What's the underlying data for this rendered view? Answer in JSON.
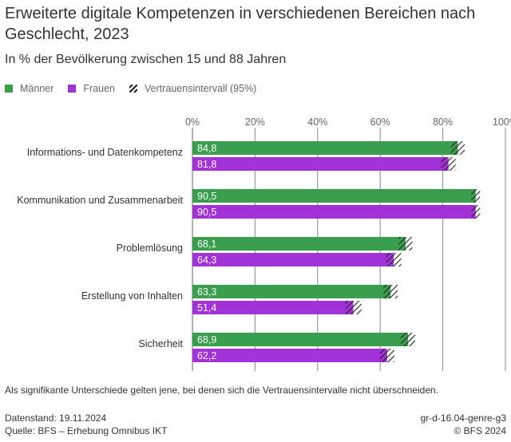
{
  "header": {
    "title": "Erweiterte digitale Kompetenzen in verschiedenen Bereichen nach Geschlecht, 2023",
    "subtitle": "In % der Bevölkerung zwischen 15 und 88 Jahren"
  },
  "legend": {
    "items": [
      {
        "label": "Männer",
        "color": "#3a9e4f",
        "icon": "green-square-icon"
      },
      {
        "label": "Frauen",
        "color": "#a331d8",
        "icon": "purple-square-icon"
      },
      {
        "label": "Vertrauensintervall (95%)",
        "icon": "hatch-icon"
      }
    ]
  },
  "chart_data": {
    "type": "bar",
    "orientation": "horizontal",
    "title": "Erweiterte digitale Kompetenzen in verschiedenen Bereichen nach Geschlecht, 2023",
    "subtitle": "In % der Bevölkerung zwischen 15 und 88 Jahren",
    "xlabel": "",
    "ylabel": "",
    "xlim": [
      0,
      100
    ],
    "x_ticks": [
      "0%",
      "20%",
      "40%",
      "60%",
      "80%",
      "100%"
    ],
    "x_tick_values": [
      0,
      20,
      40,
      60,
      80,
      100
    ],
    "grid": true,
    "legend_position": "top-left",
    "categories": [
      "Informations- und Datenkompetenz",
      "Kommunikation und Zusammenarbeit",
      "Problemlösung",
      "Erstellung von Inhalten",
      "Sicherheit"
    ],
    "series": [
      {
        "name": "Männer",
        "color": "#3a9e4f",
        "values": [
          84.8,
          90.5,
          68.1,
          63.3,
          68.9
        ],
        "labels": [
          "84,8",
          "90,5",
          "68,1",
          "63,3",
          "68,9"
        ],
        "ci_low": [
          82.6,
          89.1,
          65.9,
          61.0,
          66.6
        ],
        "ci_high": [
          87.0,
          91.9,
          70.3,
          65.6,
          71.2
        ]
      },
      {
        "name": "Frauen",
        "color": "#a331d8",
        "values": [
          81.8,
          90.5,
          64.3,
          51.4,
          62.2
        ],
        "labels": [
          "81,8",
          "90,5",
          "64,3",
          "51,4",
          "62,2"
        ],
        "ci_low": [
          79.5,
          89.1,
          61.9,
          48.8,
          59.9
        ],
        "ci_high": [
          84.1,
          91.9,
          66.7,
          54.0,
          64.5
        ]
      }
    ]
  },
  "note": "Als signifikante Unterschiede gelten jene, bei denen sich die Vertrauensintervalle nicht überschneiden.",
  "footer": {
    "date": "Datenstand: 19.11.2024",
    "source": "Quelle: BFS – Erhebung Omnibus IKT",
    "code": "gr-d-16.04-genre-g3",
    "copyright": "© BFS 2024"
  }
}
